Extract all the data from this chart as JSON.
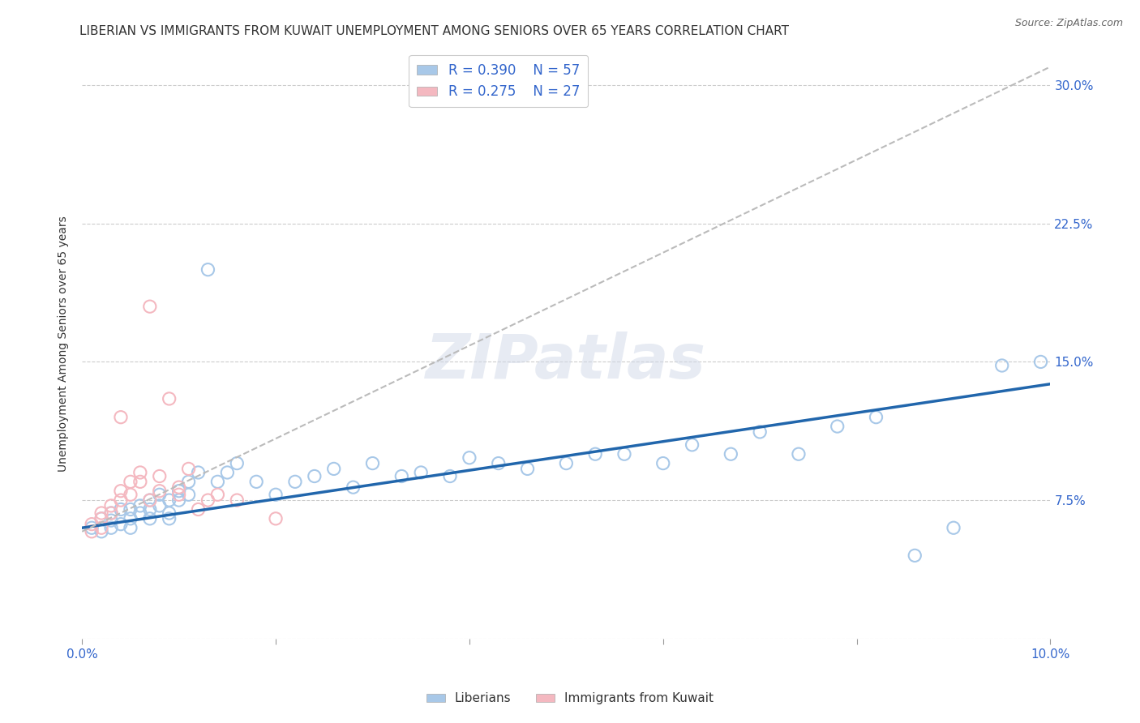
{
  "title": "LIBERIAN VS IMMIGRANTS FROM KUWAIT UNEMPLOYMENT AMONG SENIORS OVER 65 YEARS CORRELATION CHART",
  "source": "Source: ZipAtlas.com",
  "ylabel": "Unemployment Among Seniors over 65 years",
  "xlim": [
    0.0,
    0.1
  ],
  "ylim": [
    0.0,
    0.32
  ],
  "yticks": [
    0.0,
    0.075,
    0.15,
    0.225,
    0.3
  ],
  "ytick_labels": [
    "",
    "7.5%",
    "15.0%",
    "22.5%",
    "30.0%"
  ],
  "xticks": [
    0.0,
    0.02,
    0.04,
    0.06,
    0.08,
    0.1
  ],
  "xtick_labels": [
    "0.0%",
    "",
    "",
    "",
    "",
    "10.0%"
  ],
  "legend_blue_R": "R = 0.390",
  "legend_blue_N": "N = 57",
  "legend_pink_R": "R = 0.275",
  "legend_pink_N": "N = 27",
  "blue_color": "#a8c8e8",
  "pink_color": "#f4b8c0",
  "blue_line_color": "#2166ac",
  "pink_line_color": "#c87070",
  "watermark": "ZIPatlas",
  "blue_scatter_x": [
    0.001,
    0.002,
    0.002,
    0.003,
    0.003,
    0.003,
    0.004,
    0.004,
    0.005,
    0.005,
    0.005,
    0.006,
    0.006,
    0.007,
    0.007,
    0.007,
    0.008,
    0.008,
    0.009,
    0.009,
    0.009,
    0.01,
    0.01,
    0.011,
    0.011,
    0.012,
    0.013,
    0.014,
    0.015,
    0.016,
    0.018,
    0.02,
    0.022,
    0.024,
    0.026,
    0.028,
    0.03,
    0.033,
    0.035,
    0.038,
    0.04,
    0.043,
    0.046,
    0.05,
    0.053,
    0.056,
    0.06,
    0.063,
    0.067,
    0.07,
    0.074,
    0.078,
    0.082,
    0.086,
    0.09,
    0.095,
    0.099
  ],
  "blue_scatter_y": [
    0.06,
    0.058,
    0.065,
    0.06,
    0.064,
    0.068,
    0.062,
    0.07,
    0.065,
    0.07,
    0.06,
    0.068,
    0.072,
    0.065,
    0.07,
    0.075,
    0.072,
    0.078,
    0.068,
    0.075,
    0.065,
    0.075,
    0.08,
    0.078,
    0.085,
    0.09,
    0.2,
    0.085,
    0.09,
    0.095,
    0.085,
    0.078,
    0.085,
    0.088,
    0.092,
    0.082,
    0.095,
    0.088,
    0.09,
    0.088,
    0.098,
    0.095,
    0.092,
    0.095,
    0.1,
    0.1,
    0.095,
    0.105,
    0.1,
    0.112,
    0.1,
    0.115,
    0.12,
    0.045,
    0.06,
    0.148,
    0.15
  ],
  "pink_scatter_x": [
    0.001,
    0.001,
    0.002,
    0.002,
    0.002,
    0.003,
    0.003,
    0.004,
    0.004,
    0.004,
    0.005,
    0.005,
    0.006,
    0.006,
    0.007,
    0.007,
    0.008,
    0.008,
    0.009,
    0.01,
    0.01,
    0.011,
    0.012,
    0.013,
    0.014,
    0.016,
    0.02
  ],
  "pink_scatter_y": [
    0.058,
    0.062,
    0.06,
    0.065,
    0.068,
    0.068,
    0.072,
    0.075,
    0.08,
    0.12,
    0.078,
    0.085,
    0.085,
    0.09,
    0.075,
    0.18,
    0.08,
    0.088,
    0.13,
    0.078,
    0.082,
    0.092,
    0.07,
    0.075,
    0.078,
    0.075,
    0.065
  ],
  "blue_trend_x": [
    0.0,
    0.1
  ],
  "blue_trend_y": [
    0.06,
    0.138
  ],
  "pink_trend_x": [
    0.0,
    0.1
  ],
  "pink_trend_y": [
    0.058,
    0.31
  ],
  "grid_color": "#cccccc",
  "background_color": "#ffffff",
  "title_fontsize": 11,
  "axis_label_fontsize": 10,
  "tick_fontsize": 11,
  "legend_fontsize": 12
}
